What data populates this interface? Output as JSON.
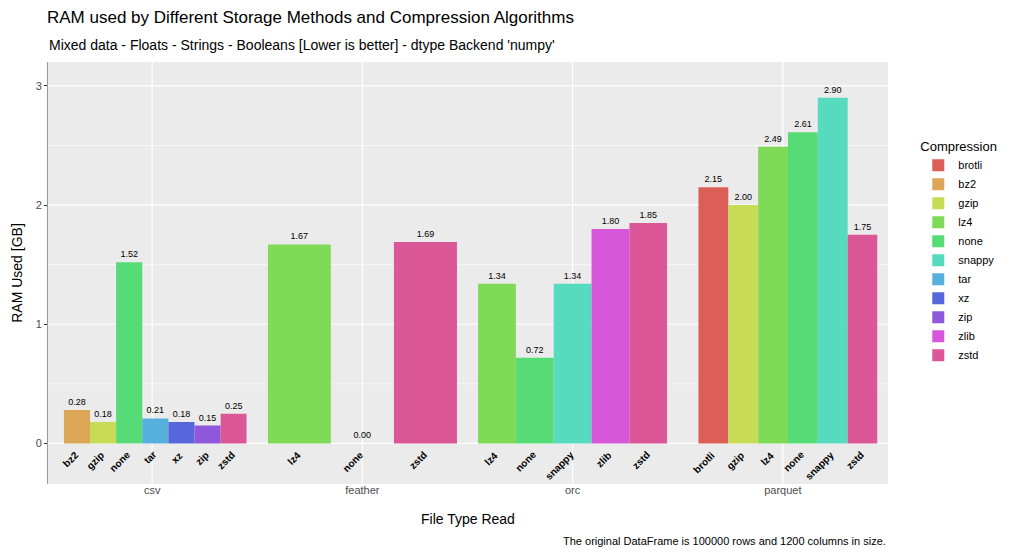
{
  "chart_data": {
    "type": "bar",
    "title": "RAM used by Different Storage Methods and Compression Algorithms",
    "subtitle": "Mixed data - Floats - Strings - Booleans [Lower is better] - dtype Backend 'numpy'",
    "x_label": "File Type Read",
    "y_label": "RAM Used [GB]",
    "caption": "The original DataFrame is 100000 rows and 1200 columns in size.",
    "legend_title": "Compression",
    "categories": [
      "csv",
      "feather",
      "orc",
      "parquet"
    ],
    "series": [
      {
        "name": "brotli",
        "color": "#db5f57",
        "values": [
          null,
          null,
          null,
          2.15
        ],
        "value_labels": [
          null,
          null,
          null,
          "2.15"
        ]
      },
      {
        "name": "bz2",
        "color": "#dba757",
        "values": [
          0.28,
          null,
          null,
          null
        ],
        "value_labels": [
          "0.28",
          null,
          null,
          null
        ]
      },
      {
        "name": "gzip",
        "color": "#c7db57",
        "values": [
          0.18,
          null,
          null,
          2.0
        ],
        "value_labels": [
          "0.18",
          null,
          null,
          "2.00"
        ]
      },
      {
        "name": "lz4",
        "color": "#7fdb57",
        "values": [
          null,
          1.67,
          1.34,
          2.49
        ],
        "value_labels": [
          null,
          "1.67",
          "1.34",
          "2.49"
        ]
      },
      {
        "name": "none",
        "color": "#57db77",
        "values": [
          1.52,
          0.0,
          0.72,
          2.61
        ],
        "value_labels": [
          "1.52",
          "0.00",
          "0.72",
          "2.61"
        ]
      },
      {
        "name": "snappy",
        "color": "#57dbbf",
        "values": [
          null,
          null,
          1.34,
          2.9
        ],
        "value_labels": [
          null,
          null,
          "1.34",
          "2.90"
        ]
      },
      {
        "name": "tar",
        "color": "#57afdb",
        "values": [
          0.21,
          null,
          null,
          null
        ],
        "value_labels": [
          "0.21",
          null,
          null,
          null
        ]
      },
      {
        "name": "xz",
        "color": "#5767db",
        "values": [
          0.18,
          null,
          null,
          null
        ],
        "value_labels": [
          "0.18",
          null,
          null,
          null
        ]
      },
      {
        "name": "zip",
        "color": "#8f57db",
        "values": [
          0.15,
          null,
          null,
          null
        ],
        "value_labels": [
          "0.15",
          null,
          null,
          null
        ]
      },
      {
        "name": "zlib",
        "color": "#d757db",
        "values": [
          null,
          null,
          1.8,
          null
        ],
        "value_labels": [
          null,
          null,
          "1.80",
          null
        ]
      },
      {
        "name": "zstd",
        "color": "#db5797",
        "values": [
          0.25,
          1.69,
          1.85,
          1.75
        ],
        "value_labels": [
          "0.25",
          "1.69",
          "1.85",
          "1.75"
        ]
      }
    ],
    "ylim": [
      -0.34,
      3.2
    ],
    "yticks": [
      0,
      1,
      2,
      3
    ],
    "grid": true,
    "data_labels": true,
    "legend": "right"
  }
}
